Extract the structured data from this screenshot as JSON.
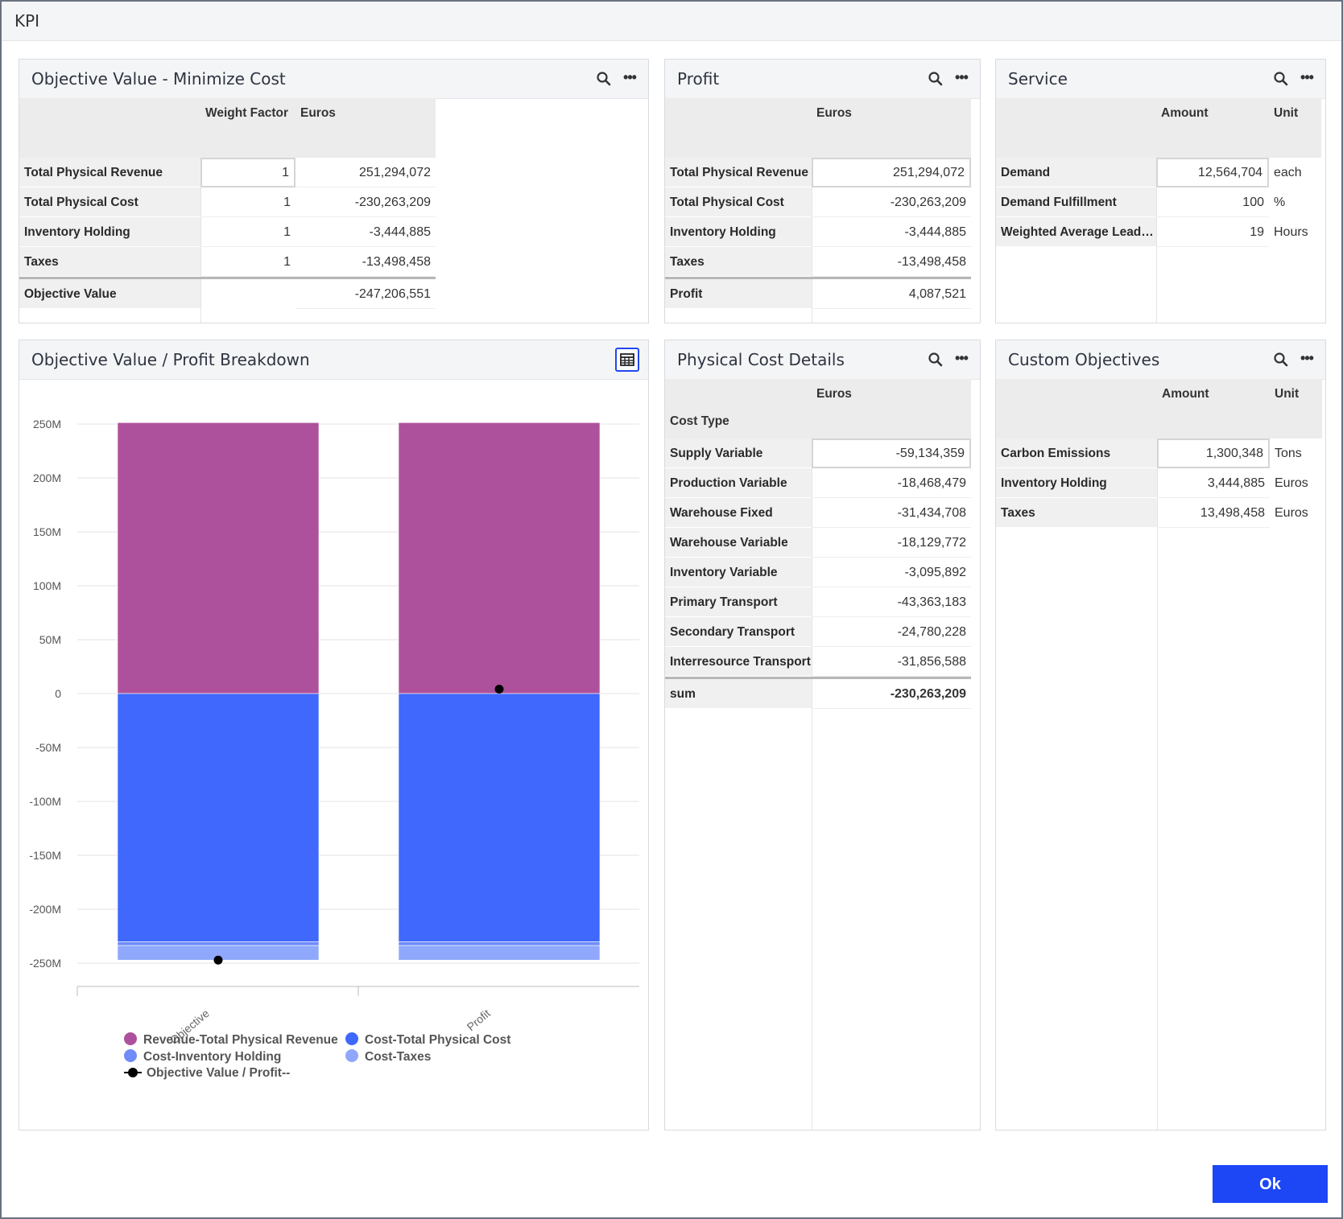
{
  "window": {
    "title": "KPI",
    "ok_label": "Ok"
  },
  "objective_panel": {
    "title": "Objective Value - Minimize Cost",
    "columns": [
      "Weight Factor",
      "Euros"
    ],
    "rows": [
      {
        "label": "Total Physical Revenue",
        "weight": "1",
        "euros": "251,294,072"
      },
      {
        "label": "Total Physical Cost",
        "weight": "1",
        "euros": "-230,263,209"
      },
      {
        "label": "Inventory Holding",
        "weight": "1",
        "euros": "-3,444,885"
      },
      {
        "label": "Taxes",
        "weight": "1",
        "euros": "-13,498,458"
      }
    ],
    "total": {
      "label": "Objective Value",
      "euros": "-247,206,551"
    }
  },
  "profit_panel": {
    "title": "Profit",
    "columns": [
      "Euros"
    ],
    "rows": [
      {
        "label": "Total Physical Revenue",
        "euros": "251,294,072"
      },
      {
        "label": "Total Physical Cost",
        "euros": "-230,263,209"
      },
      {
        "label": "Inventory Holding",
        "euros": "-3,444,885"
      },
      {
        "label": "Taxes",
        "euros": "-13,498,458"
      }
    ],
    "total": {
      "label": "Profit",
      "euros": "4,087,521"
    }
  },
  "service_panel": {
    "title": "Service",
    "columns": [
      "Amount",
      "Unit"
    ],
    "rows": [
      {
        "label": "Demand",
        "amount": "12,564,704",
        "unit": "each"
      },
      {
        "label": "Demand Fulfillment",
        "amount": "100",
        "unit": "%"
      },
      {
        "label": "Weighted Average Lead T...",
        "amount": "19",
        "unit": "Hours"
      }
    ]
  },
  "physical_cost_panel": {
    "title": "Physical Cost Details",
    "row_header": "Cost Type",
    "columns": [
      "Euros"
    ],
    "rows": [
      {
        "label": "Supply Variable",
        "euros": "-59,134,359"
      },
      {
        "label": "Production Variable",
        "euros": "-18,468,479"
      },
      {
        "label": "Warehouse Fixed",
        "euros": "-31,434,708"
      },
      {
        "label": "Warehouse Variable",
        "euros": "-18,129,772"
      },
      {
        "label": "Inventory Variable",
        "euros": "-3,095,892"
      },
      {
        "label": "Primary Transport",
        "euros": "-43,363,183"
      },
      {
        "label": "Secondary Transport",
        "euros": "-24,780,228"
      },
      {
        "label": "Interresource Transport",
        "euros": "-31,856,588"
      }
    ],
    "total": {
      "label": "sum",
      "euros": "-230,263,209"
    }
  },
  "custom_panel": {
    "title": "Custom Objectives",
    "columns": [
      "Amount",
      "Unit"
    ],
    "rows": [
      {
        "label": "Carbon Emissions",
        "amount": "1,300,348",
        "unit": "Tons"
      },
      {
        "label": "Inventory Holding",
        "amount": "3,444,885",
        "unit": "Euros"
      },
      {
        "label": "Taxes",
        "amount": "13,498,458",
        "unit": "Euros"
      }
    ]
  },
  "chart_panel": {
    "title": "Objective Value / Profit Breakdown"
  },
  "icons": {
    "search": "search-icon",
    "more": "more-icon",
    "table_view": "table-view-icon"
  },
  "colors": {
    "revenue": "#ae519c",
    "cost_physical": "#4068fd",
    "cost_inventory": "#6f8cf8",
    "cost_taxes": "#8fa8fb",
    "line": "#000000",
    "ok_button": "#1d46f5"
  },
  "chart_data": {
    "type": "bar",
    "stacked": true,
    "categories": [
      "Objective",
      "Profit"
    ],
    "series": [
      {
        "name": "Revenue-Total Physical Revenue",
        "type": "bar",
        "color": "#ae519c",
        "values": [
          251294072,
          251294072
        ]
      },
      {
        "name": "Cost-Total Physical Cost",
        "type": "bar",
        "color": "#4068fd",
        "values": [
          -230263209,
          -230263209
        ]
      },
      {
        "name": "Cost-Inventory Holding",
        "type": "bar",
        "color": "#6f8cf8",
        "values": [
          -3444885,
          -3444885
        ]
      },
      {
        "name": "Cost-Taxes",
        "type": "bar",
        "color": "#8fa8fb",
        "values": [
          -13498458,
          -13498458
        ]
      },
      {
        "name": "Objective Value / Profit--",
        "type": "line",
        "color": "#000000",
        "values": [
          -247206551,
          4087521
        ]
      }
    ],
    "y_ticks": [
      250000000,
      200000000,
      150000000,
      100000000,
      50000000,
      0,
      -50000000,
      -100000000,
      -150000000,
      -200000000,
      -250000000
    ],
    "y_tick_labels": [
      "250M",
      "200M",
      "150M",
      "100M",
      "50M",
      "0",
      "-50M",
      "-100M",
      "-150M",
      "-200M",
      "-250M"
    ],
    "ylim": [
      -250000000,
      250000000
    ],
    "grid": true,
    "legend": "bottom"
  }
}
